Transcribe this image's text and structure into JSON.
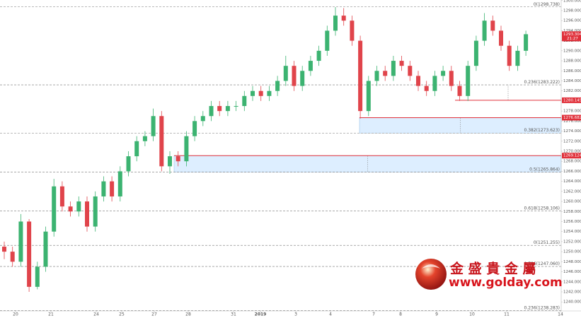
{
  "chart_data": {
    "type": "candlestick",
    "ylim": [
      1238.2,
      1300.11
    ],
    "yticks": [
      {
        "value": 1240,
        "label": "1240.000"
      },
      {
        "value": 1242,
        "label": "1242.000"
      },
      {
        "value": 1244,
        "label": "1244.000"
      },
      {
        "value": 1246,
        "label": "1246.000"
      },
      {
        "value": 1248,
        "label": "1248.000"
      },
      {
        "value": 1250,
        "label": "1250.000"
      },
      {
        "value": 1252,
        "label": "1252.000"
      },
      {
        "value": 1254,
        "label": "1254.000"
      },
      {
        "value": 1256,
        "label": "1256.000"
      },
      {
        "value": 1258,
        "label": "1258.000"
      },
      {
        "value": 1260,
        "label": "1260.000"
      },
      {
        "value": 1262,
        "label": "1262.000"
      },
      {
        "value": 1264,
        "label": "1264.000"
      },
      {
        "value": 1266,
        "label": "1266.000"
      },
      {
        "value": 1268,
        "label": "1268.000"
      },
      {
        "value": 1270,
        "label": "1270.000"
      },
      {
        "value": 1272,
        "label": "1272.000"
      },
      {
        "value": 1274,
        "label": "1274.000"
      },
      {
        "value": 1276,
        "label": "1276.000"
      },
      {
        "value": 1278,
        "label": "1278.000"
      },
      {
        "value": 1280,
        "label": "1280.000"
      },
      {
        "value": 1282,
        "label": "1282.000"
      },
      {
        "value": 1284,
        "label": "1284.000"
      },
      {
        "value": 1286,
        "label": "1286.000"
      },
      {
        "value": 1288,
        "label": "1288.000"
      },
      {
        "value": 1290,
        "label": "1290.000"
      },
      {
        "value": 1292,
        "label": "1292.000"
      },
      {
        "value": 1294,
        "label": "1294.000"
      },
      {
        "value": 1296,
        "label": "1296.000"
      },
      {
        "value": 1298,
        "label": "1298.000"
      },
      {
        "value": 1300,
        "label": "1300.000"
      }
    ],
    "categories": [
      "20",
      "21",
      "24",
      "25",
      "27",
      "28",
      "31",
      "2019",
      "3",
      "4",
      "7",
      "8",
      "9",
      "10",
      "11",
      "14"
    ],
    "up_color": "#3cb371",
    "down_color": "#e0444b",
    "open": [
      1251,
      1250,
      1248,
      1256,
      1243,
      1247,
      1254,
      1263,
      1259,
      1258,
      1260,
      1255,
      1261,
      1264,
      1261,
      1266,
      1269,
      1272,
      1273,
      1277,
      1267,
      1269,
      1268,
      1273,
      1276,
      1277,
      1279,
      1278,
      1279,
      1279,
      1281,
      1282,
      1281,
      1282,
      1284,
      1287,
      1283,
      1286,
      1288,
      1290,
      1294,
      1297,
      1296,
      1292,
      1278,
      1284,
      1286,
      1285,
      1288,
      1287,
      1285,
      1283,
      1282,
      1285,
      1286,
      1283,
      1281,
      1287,
      1292,
      1296,
      1294,
      1291,
      1287,
      1290
    ],
    "high": [
      1252,
      1251,
      1257.5,
      1256.5,
      1248,
      1255,
      1264.5,
      1264,
      1260,
      1261,
      1261,
      1262,
      1265,
      1265,
      1267,
      1270,
      1273,
      1274,
      1278.5,
      1278,
      1270,
      1270,
      1274,
      1277,
      1278,
      1280,
      1280,
      1280,
      1280,
      1282,
      1283,
      1283,
      1283,
      1285,
      1289,
      1288,
      1287,
      1289,
      1291,
      1295,
      1298.7,
      1298.5,
      1297,
      1293,
      1285,
      1287,
      1287,
      1289,
      1289,
      1288,
      1286,
      1284,
      1286,
      1287,
      1287,
      1284,
      1288,
      1293,
      1297.5,
      1297,
      1295,
      1292,
      1291,
      1294
    ],
    "low": [
      1248.5,
      1247,
      1247,
      1242,
      1242.5,
      1246,
      1253,
      1258,
      1257,
      1257,
      1254,
      1254,
      1260,
      1260,
      1260,
      1265,
      1268,
      1271,
      1272,
      1266,
      1265.5,
      1267,
      1267,
      1272,
      1275,
      1276,
      1277,
      1277,
      1278,
      1278,
      1280,
      1280,
      1280,
      1281,
      1283,
      1282,
      1282,
      1285,
      1287,
      1289,
      1293,
      1295,
      1291,
      1276.5,
      1277,
      1283,
      1284,
      1284,
      1286,
      1284,
      1282,
      1281,
      1281,
      1284,
      1282,
      1280,
      1280,
      1286,
      1291,
      1293,
      1290,
      1286,
      1286,
      1289
    ],
    "close": [
      1250,
      1248,
      1256,
      1243,
      1247,
      1254,
      1263,
      1259,
      1258,
      1260,
      1255,
      1261,
      1264,
      1261,
      1266,
      1269,
      1272,
      1273,
      1277,
      1267,
      1269,
      1268,
      1273,
      1276,
      1277,
      1279,
      1278,
      1279,
      1279,
      1281,
      1282,
      1281,
      1282,
      1284,
      1287,
      1283,
      1286,
      1288,
      1290,
      1294,
      1297,
      1296,
      1292,
      1278,
      1284,
      1286,
      1285,
      1288,
      1287,
      1285,
      1283,
      1282,
      1285,
      1286,
      1283,
      1281,
      1287,
      1292,
      1296,
      1294,
      1291,
      1287,
      1290,
      1293.3
    ],
    "fib_levels": [
      {
        "value": 1298.738,
        "label": "0(1298.738)"
      },
      {
        "value": 1283.222,
        "label": "0.236(1283.222)"
      },
      {
        "value": 1273.623,
        "label": "0.382(1273.623)"
      },
      {
        "value": 1265.864,
        "label": "0.5(1265.864)"
      },
      {
        "value": 1258.106,
        "label": "0.618(1258.106)"
      },
      {
        "value": 1251.255,
        "label": "0(1251.255)"
      },
      {
        "value": 1247.06,
        "label": "0.786(1247.060)"
      },
      {
        "value": 1238.283,
        "label": "0.236(1238.283)"
      }
    ],
    "price_lines": [
      {
        "value": 1280.145,
        "label": "1280.145"
      },
      {
        "value": 1276.682,
        "label": "1276.682"
      },
      {
        "value": 1269.124,
        "label": "1269.124"
      }
    ],
    "last_price": {
      "value": 1293.304,
      "label": "1293.304",
      "time": "21:27"
    },
    "watermark": {
      "name": "金 盛 貴 金 屬",
      "url": "www.golday.com"
    }
  }
}
